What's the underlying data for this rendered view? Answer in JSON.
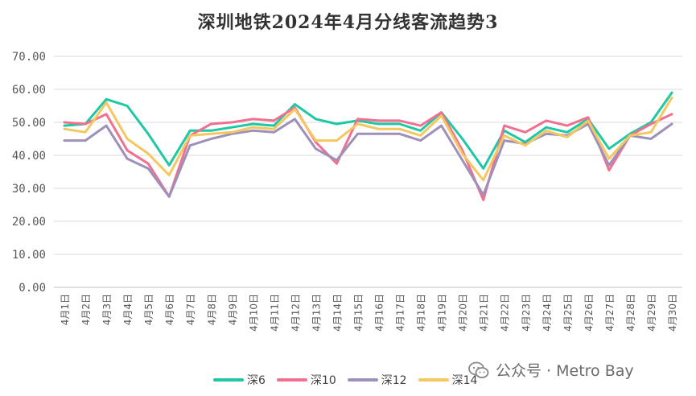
{
  "chart_data": {
    "type": "line",
    "title": "深圳地铁2024年4月分线客流趋势3",
    "xlabel": "",
    "ylabel": "",
    "ylim": [
      0,
      70
    ],
    "yticks": [
      "0.00",
      "10.00",
      "20.00",
      "30.00",
      "40.00",
      "50.00",
      "60.00",
      "70.00"
    ],
    "grid": true,
    "legend_position": "bottom",
    "categories": [
      "4月1日",
      "4月2日",
      "4月3日",
      "4月4日",
      "4月5日",
      "4月6日",
      "4月7日",
      "4月8日",
      "4月9日",
      "4月10日",
      "4月11日",
      "4月12日",
      "4月13日",
      "4月14日",
      "4月15日",
      "4月16日",
      "4月17日",
      "4月18日",
      "4月19日",
      "4月20日",
      "4月21日",
      "4月22日",
      "4月23日",
      "4月24日",
      "4月25日",
      "4月26日",
      "4月27日",
      "4月28日",
      "4月29日",
      "4月30日"
    ],
    "series": [
      {
        "name": "深6",
        "color": "#1ec8a5",
        "values": [
          49,
          49.5,
          57,
          55,
          46.5,
          37,
          47.5,
          47.5,
          48.5,
          49.5,
          49,
          55.5,
          51,
          49.5,
          50.5,
          49.5,
          49.5,
          47.5,
          53,
          45,
          36,
          47.5,
          44,
          48.5,
          47,
          51,
          42,
          46.5,
          50,
          59
        ]
      },
      {
        "name": "深10",
        "color": "#f07090",
        "values": [
          50,
          49.5,
          52.5,
          41.5,
          37.5,
          27.5,
          46,
          49.5,
          50,
          51,
          50.5,
          54.5,
          44,
          37.5,
          51,
          50.5,
          50.5,
          49,
          53,
          41.5,
          26.5,
          49,
          47,
          50.5,
          49,
          51.5,
          35.5,
          46,
          49.5,
          52.5
        ]
      },
      {
        "name": "深12",
        "color": "#9e90b8",
        "values": [
          44.5,
          44.5,
          49,
          39,
          36,
          27.5,
          43,
          45,
          46.5,
          47.5,
          47,
          51,
          42,
          38.5,
          46.5,
          46.5,
          46.5,
          44.5,
          49,
          38.5,
          28,
          44.5,
          43.5,
          46.5,
          46,
          49.5,
          37,
          46,
          45,
          49.5
        ]
      },
      {
        "name": "深14",
        "color": "#f5c760",
        "values": [
          48,
          47,
          56,
          45,
          40.5,
          34,
          46,
          46.5,
          47,
          48.5,
          48,
          54,
          44.5,
          44.5,
          49.5,
          48,
          48,
          46,
          52,
          40.5,
          32.5,
          46,
          43,
          47.5,
          45.5,
          50.5,
          39,
          46,
          47,
          57.5
        ]
      }
    ]
  },
  "watermark": {
    "icon": "wechat-icon",
    "text": "公众号 · Metro Bay"
  }
}
